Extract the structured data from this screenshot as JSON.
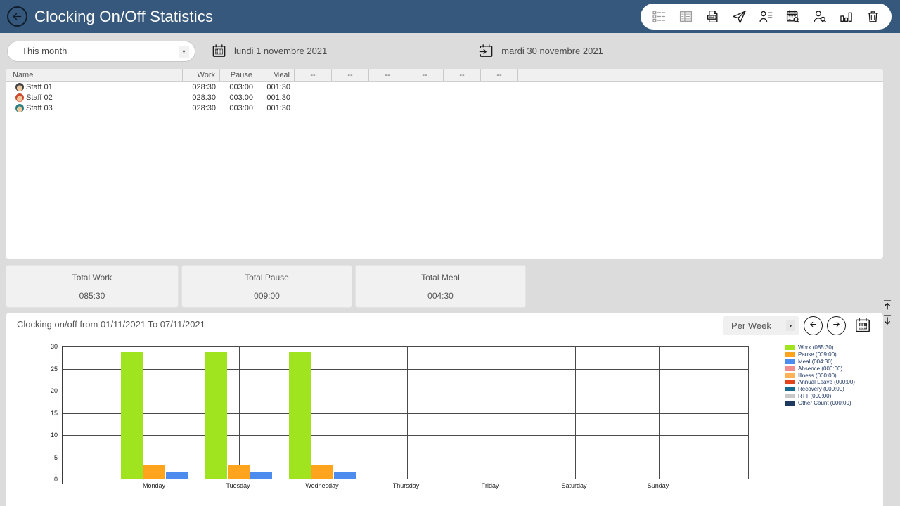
{
  "app": {
    "title": "Clocking On/Off Statistics"
  },
  "toolbar": {
    "icons": [
      {
        "name": "list-view-icon",
        "disabled": true
      },
      {
        "name": "table-view-icon",
        "disabled": true
      },
      {
        "name": "pdf-export-icon",
        "disabled": false
      },
      {
        "name": "send-report-icon",
        "disabled": false
      },
      {
        "name": "staff-list-icon",
        "disabled": false
      },
      {
        "name": "calendar-search-icon",
        "disabled": false
      },
      {
        "name": "person-search-icon",
        "disabled": false
      },
      {
        "name": "chart-icon",
        "disabled": false
      },
      {
        "name": "delete-icon",
        "disabled": false
      }
    ]
  },
  "filters": {
    "period_value": "This month",
    "date_from": "lundi 1 novembre 2021",
    "date_to": "mardi 30 novembre 2021"
  },
  "table": {
    "columns": [
      "Name",
      "Work",
      "Pause",
      "Meal",
      "--",
      "--",
      "--",
      "--",
      "--",
      "--"
    ],
    "rows": [
      {
        "name": "Staff 01",
        "avatar_color": "#454545",
        "work": "028:30",
        "pause": "003:00",
        "meal": "001:30"
      },
      {
        "name": "Staff 02",
        "avatar_color": "#cc4a2e",
        "work": "028:30",
        "pause": "003:00",
        "meal": "001:30"
      },
      {
        "name": "Staff 03",
        "avatar_color": "#2a7f82",
        "work": "028:30",
        "pause": "003:00",
        "meal": "001:30"
      }
    ]
  },
  "totals": [
    {
      "label": "Total Work",
      "value": "085:30"
    },
    {
      "label": "Total Pause",
      "value": "009:00"
    },
    {
      "label": "Total Meal",
      "value": "004:30"
    }
  ],
  "chart_header": {
    "title": "Clocking on/off from 01/11/2021 To 07/11/2021",
    "period_selector": "Per Week"
  },
  "chart_data": {
    "type": "bar",
    "title": "Clocking on/off from 01/11/2021 To 07/11/2021",
    "categories": [
      "Monday",
      "Tuesday",
      "Wednesday",
      "Thursday",
      "Friday",
      "Saturday",
      "Sunday"
    ],
    "ylim": [
      0,
      30
    ],
    "yticks": [
      0,
      5,
      10,
      15,
      20,
      25,
      30
    ],
    "grid": true,
    "legend_position": "right",
    "series": [
      {
        "name": "Work",
        "legend": "Work (085:30)",
        "color": "#9FE41E",
        "values": [
          28.5,
          28.5,
          28.5,
          0,
          0,
          0,
          0
        ]
      },
      {
        "name": "Pause",
        "legend": "Pause (009:00)",
        "color": "#FFA41C",
        "values": [
          3,
          3,
          3,
          0,
          0,
          0,
          0
        ]
      },
      {
        "name": "Meal",
        "legend": "Meal (004:30)",
        "color": "#4C8CEF",
        "values": [
          1.5,
          1.5,
          1.5,
          0,
          0,
          0,
          0
        ]
      },
      {
        "name": "Absence",
        "legend": "Absence (000:00)",
        "color": "#F08E8E",
        "values": [
          0,
          0,
          0,
          0,
          0,
          0,
          0
        ]
      },
      {
        "name": "Illness",
        "legend": "Illness (000:00)",
        "color": "#FFB356",
        "values": [
          0,
          0,
          0,
          0,
          0,
          0,
          0
        ]
      },
      {
        "name": "Annual Leave",
        "legend": "Annual Leave (000:00)",
        "color": "#E2441B",
        "values": [
          0,
          0,
          0,
          0,
          0,
          0,
          0
        ]
      },
      {
        "name": "Recovery",
        "legend": "Recovery (000:00)",
        "color": "#16698F",
        "values": [
          0,
          0,
          0,
          0,
          0,
          0,
          0
        ]
      },
      {
        "name": "RTT",
        "legend": "RTT (000:00)",
        "color": "#C8C8C8",
        "values": [
          0,
          0,
          0,
          0,
          0,
          0,
          0
        ]
      },
      {
        "name": "Other Count",
        "legend": "Other Count (000:00)",
        "color": "#1E3A5F",
        "values": [
          0,
          0,
          0,
          0,
          0,
          0,
          0
        ]
      }
    ]
  }
}
